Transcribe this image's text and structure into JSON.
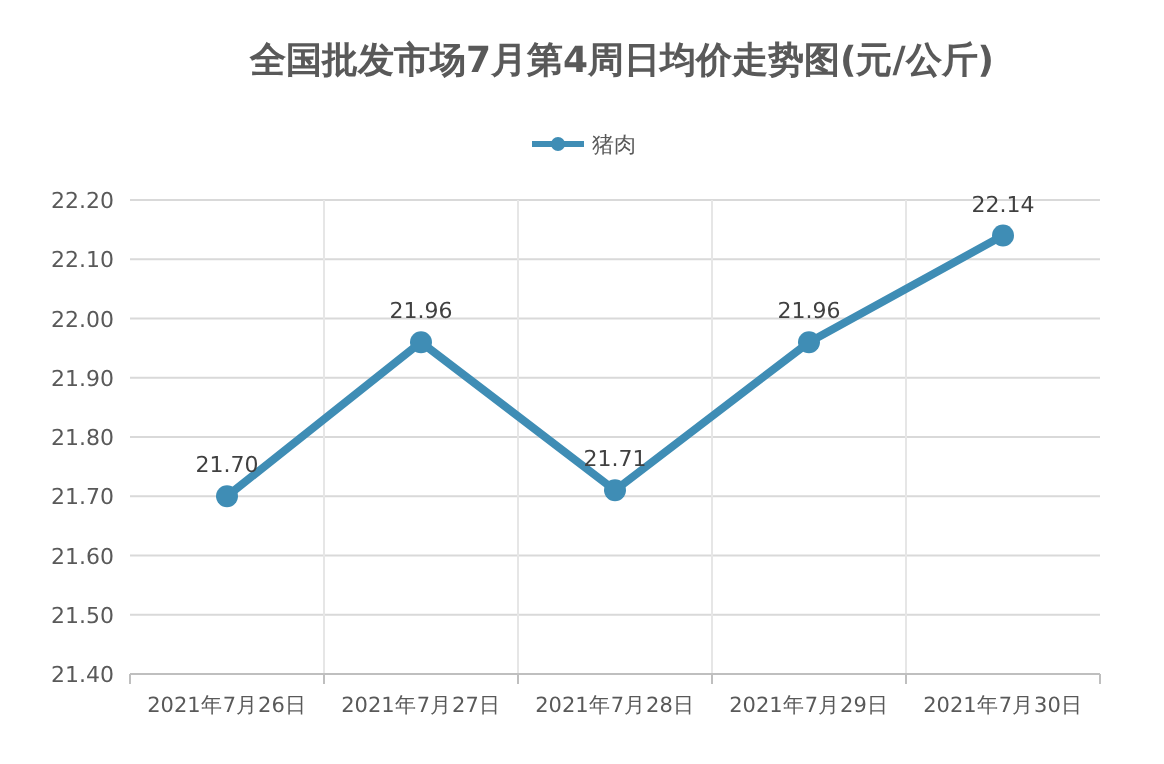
{
  "chart_data": {
    "type": "line",
    "title": "全国批发市场7月第4周日均价走势图(元/公斤)",
    "categories": [
      "2021年7月26日",
      "2021年7月27日",
      "2021年7月28日",
      "2021年7月29日",
      "2021年7月30日"
    ],
    "series": [
      {
        "name": "猪肉",
        "color": "#3f8db5",
        "values": [
          21.7,
          21.96,
          21.71,
          21.96,
          22.14
        ],
        "value_labels": [
          "21.70",
          "21.96",
          "21.71",
          "21.96",
          "22.14"
        ]
      }
    ],
    "ylim": [
      21.4,
      22.2
    ],
    "yticks": [
      {
        "value": 21.4,
        "label": "21.40"
      },
      {
        "value": 21.5,
        "label": "21.50"
      },
      {
        "value": 21.6,
        "label": "21.60"
      },
      {
        "value": 21.7,
        "label": "21.70"
      },
      {
        "value": 21.8,
        "label": "21.80"
      },
      {
        "value": 21.9,
        "label": "21.90"
      },
      {
        "value": 22.0,
        "label": "22.00"
      },
      {
        "value": 22.1,
        "label": "22.10"
      },
      {
        "value": 22.2,
        "label": "22.20"
      }
    ],
    "grid": true,
    "legend": "top",
    "marker": "circle",
    "line_style": "solid"
  }
}
